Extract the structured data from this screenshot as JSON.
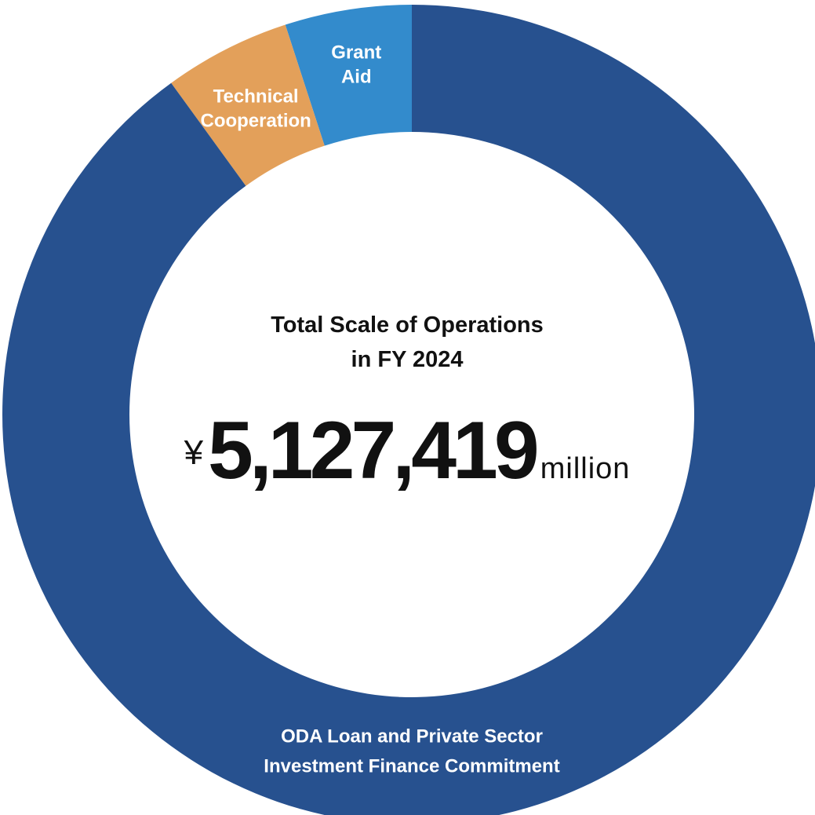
{
  "chart_data": {
    "type": "pie",
    "variant": "donut",
    "title_lines": [
      "Total Scale of Operations",
      "in FY 2024"
    ],
    "total": {
      "currency": "¥",
      "value": "5,127,419",
      "unit": "million"
    },
    "slices": [
      {
        "id": "grant-aid",
        "label_lines": [
          "Grant",
          "Aid"
        ],
        "share": 0.05,
        "color": "#338BCC"
      },
      {
        "id": "technical-cooperation",
        "label_lines": [
          "Technical",
          "Cooperation"
        ],
        "share": 0.05,
        "color": "#E3A05A"
      },
      {
        "id": "oda-loan",
        "label_lines": [
          "ODA Loan and Private Sector",
          "Investment Finance Commitment"
        ],
        "share": 0.9,
        "color": "#27518F"
      }
    ],
    "legend": "none",
    "grid": false
  }
}
